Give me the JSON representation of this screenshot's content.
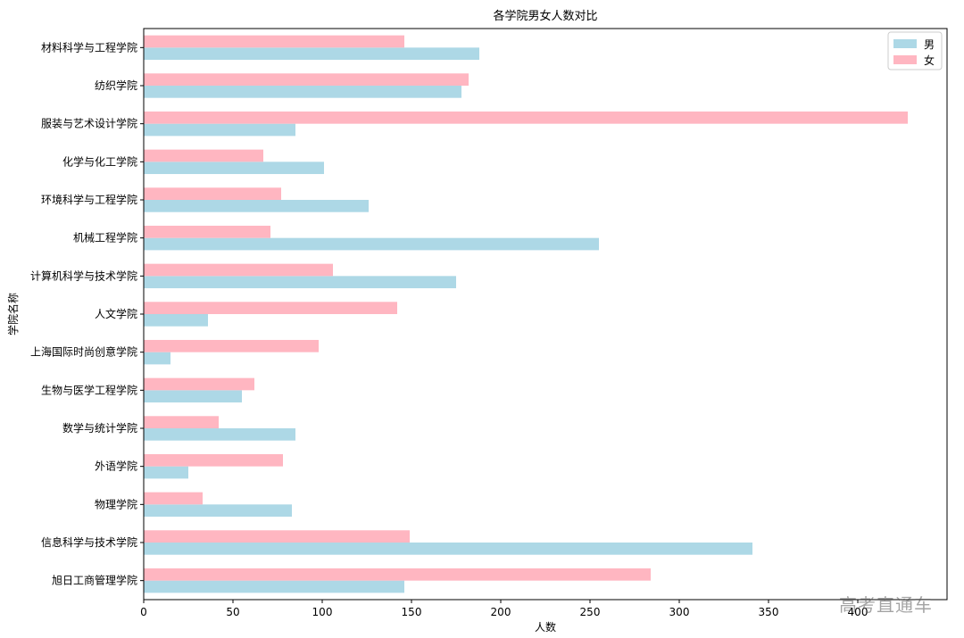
{
  "chart_data": {
    "type": "bar",
    "orientation": "horizontal",
    "title": "各学院男女人数对比",
    "xlabel": "人数",
    "ylabel": "学院名称",
    "xlim": [
      0,
      450
    ],
    "xticks": [
      0,
      50,
      100,
      150,
      200,
      250,
      300,
      350,
      400
    ],
    "categories": [
      "旭日工商管理学院",
      "信息科学与技术学院",
      "物理学院",
      "外语学院",
      "数学与统计学院",
      "生物与医学工程学院",
      "上海国际时尚创意学院",
      "人文学院",
      "计算机科学与技术学院",
      "机械工程学院",
      "环境科学与工程学院",
      "化学与化工学院",
      "服装与艺术设计学院",
      "纺织学院",
      "材料科学与工程学院"
    ],
    "series": [
      {
        "name": "男",
        "color": "#add8e6",
        "values": [
          146,
          341,
          83,
          25,
          85,
          55,
          15,
          36,
          175,
          255,
          126,
          101,
          85,
          178,
          188
        ]
      },
      {
        "name": "女",
        "color": "#ffb6c1",
        "values": [
          284,
          149,
          33,
          78,
          42,
          62,
          98,
          142,
          106,
          71,
          77,
          67,
          428,
          182,
          146
        ]
      }
    ],
    "legend": "top-right",
    "grid": false
  },
  "watermark": "高考直通车"
}
